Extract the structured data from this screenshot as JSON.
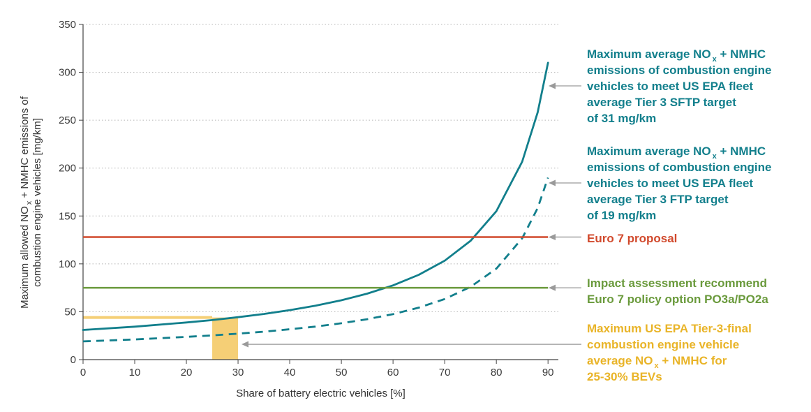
{
  "chart_data": {
    "type": "line",
    "xlabel": "Share of battery electric vehicles [%]",
    "ylabel_lines": [
      [
        "Maximum allowed NO",
        "x",
        " + NMHC emissions of"
      ],
      [
        "combustion engine vehicles [mg/km]"
      ]
    ],
    "xlim": [
      0,
      92
    ],
    "ylim": [
      0,
      350
    ],
    "xticks": [
      0,
      10,
      20,
      30,
      40,
      50,
      60,
      70,
      80,
      90
    ],
    "yticks": [
      0,
      50,
      100,
      150,
      200,
      250,
      300,
      350
    ],
    "grid": "horizontal dotted",
    "series": [
      {
        "name": "US EPA Tier 3 SFTP (31 mg/km)",
        "style": "solid",
        "color": "#127f8c",
        "x": [
          0,
          10,
          20,
          25,
          30,
          35,
          40,
          45,
          50,
          55,
          60,
          65,
          70,
          75,
          80,
          85,
          88,
          90
        ],
        "y": [
          31,
          34.4,
          38.8,
          41.3,
          44.3,
          47.7,
          51.7,
          56.4,
          62,
          68.9,
          77.5,
          88.6,
          103.3,
          124,
          155,
          206.7,
          258.3,
          310
        ]
      },
      {
        "name": "US EPA Tier 3 FTP (19 mg/km)",
        "style": "dashed",
        "color": "#127f8c",
        "x": [
          0,
          10,
          20,
          25,
          30,
          35,
          40,
          45,
          50,
          55,
          60,
          65,
          70,
          75,
          80,
          85,
          88,
          90
        ],
        "y": [
          19,
          21.1,
          23.8,
          25.3,
          27.1,
          29.2,
          31.7,
          34.5,
          38,
          42.2,
          47.5,
          54.3,
          63.3,
          76,
          95,
          126.7,
          158.3,
          190
        ]
      },
      {
        "name": "Euro 7 proposal",
        "style": "hline",
        "color": "#d1492c",
        "y": 128
      },
      {
        "name": "Impact assessment recommend Euro 7 policy option PO3a/PO2a",
        "style": "hline",
        "color": "#6a9a3c",
        "y": 75
      }
    ],
    "highlight": {
      "x_range": [
        25,
        30
      ],
      "y_max": 44,
      "color": "#f5cf76"
    },
    "annotations": [
      {
        "id": "sftp",
        "color": "#127f8c",
        "arrow_target": [
          90,
          292
        ],
        "lines": [
          [
            "Maximum average NO",
            "x",
            " + NMHC"
          ],
          [
            "emissions of combustion engine"
          ],
          [
            "vehicles to meet US EPA fleet"
          ],
          [
            "average Tier 3 SFTP target"
          ],
          [
            "of 31 mg/km"
          ]
        ]
      },
      {
        "id": "ftp",
        "color": "#127f8c",
        "arrow_target": [
          90,
          183
        ],
        "lines": [
          [
            "Maximum average NO",
            "x",
            " + NMHC"
          ],
          [
            "emissions of combustion engine"
          ],
          [
            "vehicles to meet US EPA fleet"
          ],
          [
            "average Tier 3 FTP target"
          ],
          [
            "of 19 mg/km"
          ]
        ]
      },
      {
        "id": "euro7",
        "color": "#d1492c",
        "arrow_target": [
          90,
          128
        ],
        "lines": [
          [
            "Euro 7 proposal"
          ]
        ]
      },
      {
        "id": "impact",
        "color": "#6a9a3c",
        "arrow_target": [
          90,
          75
        ],
        "lines": [
          [
            "Impact assessment recommend"
          ],
          [
            "Euro 7 policy option PO3a/PO2a"
          ]
        ]
      },
      {
        "id": "tier3final",
        "color": "#e9b428",
        "arrow_target": [
          30,
          16
        ],
        "lines": [
          [
            "Maximum US EPA Tier-3-final"
          ],
          [
            "combustion engine vehicle"
          ],
          [
            "average NO",
            "x",
            " + NMHC for"
          ],
          [
            "25-30% BEVs"
          ]
        ]
      }
    ]
  }
}
